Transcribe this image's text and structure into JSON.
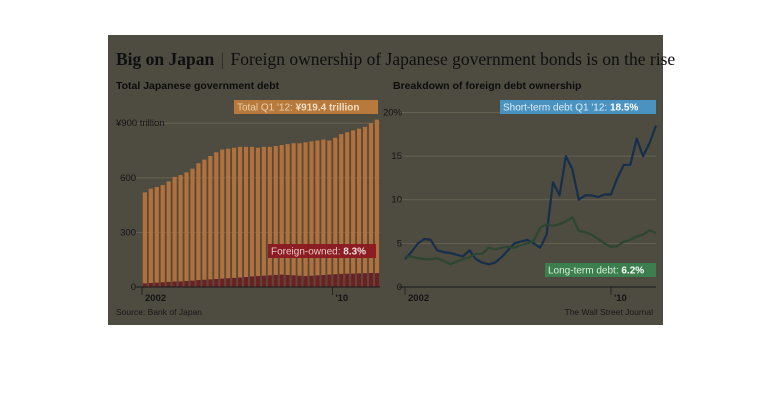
{
  "header": {
    "headline_bold": "Big on Japan",
    "separator": "|",
    "headline_rest": "Foreign ownership of Japanese government bonds is on the rise"
  },
  "footer": {
    "source": "Source: Bank of Japan",
    "credit": "The Wall Street Journal"
  },
  "colors": {
    "background": "#4e4b41",
    "total_bars": "#b4703a",
    "foreign_bars": "#6e1f22",
    "short_term_line": "#162f4a",
    "long_term_line": "#2c4632",
    "short_callout": "#4a93c0",
    "long_callout": "#3d7e4e",
    "total_callout": "#b87a3c",
    "foreign_callout": "#8c1d22"
  },
  "chart_data": [
    {
      "type": "bar",
      "title": "Total Japanese government debt",
      "y_unit_label": "¥900 trillion",
      "ylim": [
        0,
        1000
      ],
      "yticks": [
        0,
        300,
        600,
        900
      ],
      "ytick_labels": [
        "0",
        "300",
        "600",
        "¥900 trillion"
      ],
      "x_tick_labels": [
        {
          "label": "2002",
          "index": 0
        },
        {
          "label": "'10",
          "index": 32
        }
      ],
      "callouts": {
        "total": {
          "label": "Total Q1 '12:",
          "value": "¥919.4 trillion"
        },
        "foreign": {
          "label": "Foreign-owned:",
          "value": "8.3%"
        }
      },
      "series": [
        {
          "name": "Total",
          "values": [
            520,
            540,
            550,
            560,
            580,
            605,
            615,
            630,
            650,
            680,
            700,
            720,
            740,
            755,
            760,
            765,
            770,
            770,
            770,
            765,
            770,
            770,
            775,
            780,
            785,
            790,
            790,
            795,
            800,
            805,
            810,
            805,
            820,
            840,
            850,
            860,
            870,
            880,
            900,
            919.4
          ]
        },
        {
          "name": "Foreign-owned",
          "values": [
            20,
            22,
            24,
            26,
            28,
            30,
            31,
            33,
            35,
            38,
            40,
            42,
            44,
            46,
            48,
            50,
            52,
            55,
            58,
            60,
            62,
            64,
            66,
            68,
            66,
            64,
            62,
            60,
            62,
            64,
            66,
            68,
            70,
            72,
            73,
            74,
            75,
            76,
            77,
            76.3
          ]
        }
      ]
    },
    {
      "type": "line",
      "title": "Breakdown of foreign debt ownership",
      "ylim": [
        0,
        22
      ],
      "yticks": [
        0,
        5,
        10,
        15,
        20
      ],
      "ytick_labels": [
        "0",
        "5",
        "10",
        "15",
        "20%"
      ],
      "x_tick_labels": [
        {
          "label": "2002",
          "index": 0
        },
        {
          "label": "'10",
          "index": 32
        }
      ],
      "callouts": {
        "short": {
          "label": "Short-term debt Q1 '12:",
          "value": "18.5%"
        },
        "long": {
          "label": "Long-term debt:",
          "value": "6.2%"
        }
      },
      "series": [
        {
          "name": "Short-term debt",
          "values": [
            3.2,
            4.0,
            5.0,
            5.5,
            5.4,
            4.2,
            4.0,
            3.9,
            3.7,
            3.5,
            4.2,
            3.2,
            2.8,
            2.6,
            2.8,
            3.4,
            4.2,
            5.0,
            5.2,
            5.4,
            5.0,
            4.5,
            6.0,
            12.0,
            10.5,
            15.0,
            13.5,
            10.0,
            10.5,
            10.5,
            10.3,
            10.6,
            10.6,
            12.5,
            14.0,
            14.0,
            17.0,
            15.0,
            16.5,
            18.5
          ]
        },
        {
          "name": "Long-term debt",
          "values": [
            3.5,
            3.5,
            3.3,
            3.2,
            3.2,
            3.3,
            3.0,
            2.6,
            2.9,
            3.2,
            3.4,
            3.8,
            3.8,
            4.5,
            4.3,
            4.5,
            4.6,
            4.5,
            4.8,
            5.0,
            5.3,
            6.8,
            7.2,
            7.0,
            7.2,
            7.5,
            8.0,
            6.4,
            6.3,
            6.0,
            5.5,
            5.0,
            4.6,
            4.7,
            5.2,
            5.4,
            5.8,
            6.0,
            6.5,
            6.2
          ]
        }
      ]
    }
  ]
}
